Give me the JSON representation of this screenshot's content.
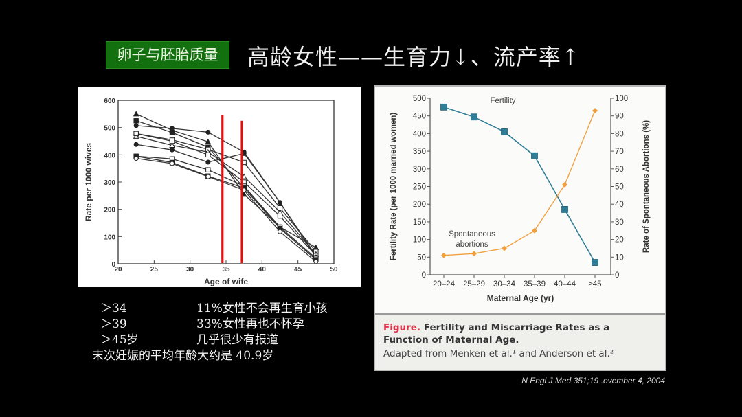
{
  "header": {
    "tag": "卵子与胚胎质量",
    "title": "高龄女性——生育力↓、流产率↑"
  },
  "notes": {
    "rows": [
      {
        "key": "＞34",
        "value": "11%女性不会再生育小孩"
      },
      {
        "key": "＞39",
        "value": "33%女性再也不怀孕"
      },
      {
        "key": "＞45岁",
        "value": "几乎很少有报道"
      }
    ],
    "summary": "末次妊娠的平均年龄大约是 40.9岁"
  },
  "caption": {
    "figure_label": "Figure.",
    "title": "Fertility and Miscarriage Rates as a Function of Maternal Age.",
    "source": "Adapted from Menken et al.¹ and Anderson et al.²"
  },
  "citation": "N Engl J Med 351;19 .ovember 4, 2004",
  "colors": {
    "tag_bg": "#13700f",
    "red_marker": "#e01010",
    "fertility": "#2f7d96",
    "abortion": "#f0a040",
    "caption_red": "#e0324a"
  },
  "chart_data": [
    {
      "type": "line",
      "title": "",
      "xlabel": "Age of wife",
      "ylabel": "Rate per 1000 wives",
      "xlim": [
        20,
        50
      ],
      "ylim": [
        0,
        600
      ],
      "xticks": [
        20,
        25,
        30,
        35,
        40,
        45,
        50
      ],
      "yticks": [
        0,
        100,
        200,
        300,
        400,
        500,
        600
      ],
      "grid": false,
      "x": [
        22.5,
        27.5,
        32.5,
        37.5,
        42.5,
        47.5
      ],
      "series": [
        {
          "name": "s1",
          "marker": "filled-triangle",
          "values": [
            550,
            490,
            448,
            255,
            135,
            60
          ]
        },
        {
          "name": "s2",
          "marker": "filled-square",
          "values": [
            525,
            482,
            428,
            278,
            135,
            20
          ]
        },
        {
          "name": "s3",
          "marker": "filled-circle",
          "values": [
            507,
            497,
            483,
            410,
            225,
            30
          ]
        },
        {
          "name": "s4",
          "marker": "open-square",
          "values": [
            478,
            455,
            420,
            372,
            205,
            45
          ]
        },
        {
          "name": "s5",
          "marker": "open-triangle",
          "values": [
            468,
            435,
            410,
            320,
            190,
            35
          ]
        },
        {
          "name": "s6",
          "marker": "open-square",
          "values": [
            478,
            450,
            400,
            300,
            175,
            30
          ]
        },
        {
          "name": "s7",
          "marker": "filled-circle",
          "values": [
            438,
            418,
            373,
            405,
            225,
            25
          ]
        },
        {
          "name": "s8",
          "marker": "open-square",
          "values": [
            395,
            385,
            345,
            285,
            135,
            20
          ]
        },
        {
          "name": "s9",
          "marker": "filled-square",
          "values": [
            395,
            372,
            322,
            278,
            130,
            15
          ]
        },
        {
          "name": "s10",
          "marker": "open-circle",
          "values": [
            387,
            368,
            320,
            270,
            118,
            8
          ]
        }
      ],
      "annotations": [
        {
          "type": "vertical-line",
          "x": 34.5,
          "color": "#e01010"
        },
        {
          "type": "vertical-line",
          "x": 37.2,
          "color": "#e01010"
        }
      ]
    },
    {
      "type": "line",
      "title": "",
      "xlabel": "Maternal Age (yr)",
      "ylabel": "Fertility Rate (per 1000 married women)",
      "ylabel_right": "Rate of Spontaneous Abortions (%)",
      "categories": [
        "20–24",
        "25–29",
        "30–34",
        "35–39",
        "40–44",
        "≥45"
      ],
      "ylim": [
        0,
        500
      ],
      "ylim_right": [
        0,
        100
      ],
      "yticks": [
        0,
        50,
        100,
        150,
        200,
        250,
        300,
        350,
        400,
        450,
        500
      ],
      "yticks_right": [
        0,
        10,
        20,
        30,
        40,
        50,
        60,
        70,
        80,
        90,
        100
      ],
      "grid": false,
      "series": [
        {
          "name": "Fertility",
          "axis": "left",
          "color": "#2f7d96",
          "marker": "square",
          "values": [
            475,
            447,
            405,
            337,
            185,
            35
          ]
        },
        {
          "name": "Spontaneous abortions",
          "axis": "right",
          "color": "#f0a040",
          "marker": "diamond",
          "values": [
            11,
            12,
            15,
            25,
            51,
            93
          ]
        }
      ],
      "labels": {
        "fertility": "Fertility",
        "abortion_line1": "Spontaneous",
        "abortion_line2": "abortions"
      }
    }
  ]
}
